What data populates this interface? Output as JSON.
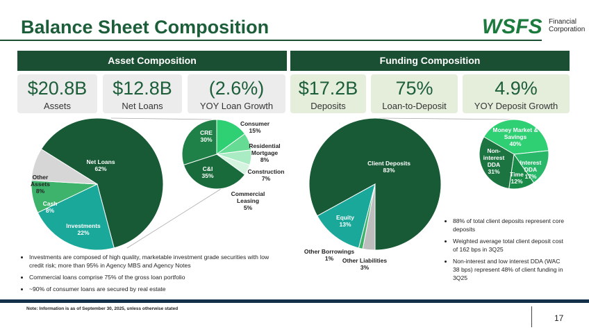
{
  "title": "Balance Sheet Composition",
  "logo": {
    "name": "WSFS",
    "line1": "Financial",
    "line2": "Corporation"
  },
  "asset_section": {
    "title": "Asset Composition",
    "kpis": [
      {
        "value": "$20.8B",
        "label": "Assets"
      },
      {
        "value": "$12.8B",
        "label": "Net Loans"
      },
      {
        "value": "(2.6%)",
        "label": "YOY Loan Growth"
      }
    ],
    "bullets": [
      "Investments are composed of high quality, marketable investment grade securities with low credit risk; more than 95% in Agency MBS and Agency Notes",
      "Commercial loans comprise 75% of the gross loan portfolio",
      "~90% of consumer loans are secured by real estate"
    ]
  },
  "funding_section": {
    "title": "Funding Composition",
    "kpis": [
      {
        "value": "$17.2B",
        "label": "Deposits"
      },
      {
        "value": "75%",
        "label": "Loan-to-Deposit"
      },
      {
        "value": "4.9%",
        "label": "YOY Deposit Growth"
      }
    ],
    "bullets": [
      "88% of total client deposits represent core deposits",
      "Weighted average total client deposit cost of 162 bps in 3Q25",
      "Non-interest and low interest DDA (WAC 38 bps) represent 48% of client funding in 3Q25"
    ]
  },
  "chart_data": [
    {
      "type": "pie",
      "categories": [
        "Net Loans",
        "Investments",
        "Cash",
        "Other Assets"
      ],
      "values": [
        62,
        22,
        8,
        8
      ],
      "value_labels": [
        "62%",
        "22%",
        "8%",
        "8%"
      ],
      "colors": [
        "#175a35",
        "#1aa89a",
        "#3db36b",
        "#d6d6d6"
      ]
    },
    {
      "type": "pie",
      "categories": [
        "Consumer",
        "Residential Mortgage",
        "Construction",
        "Commercial Leasing",
        "C&I",
        "CRE"
      ],
      "values": [
        15,
        8,
        7,
        5,
        35,
        30
      ],
      "value_labels": [
        "15%",
        "8%",
        "7%",
        "5%",
        "35%",
        "30%"
      ],
      "colors": [
        "#2fcf74",
        "#66db93",
        "#a9ebc2",
        "#d4f4e0",
        "#1a6b3c",
        "#1f8147"
      ]
    },
    {
      "type": "pie",
      "categories": [
        "Client Deposits",
        "Other Liabilities",
        "Other Borrowings",
        "Equity"
      ],
      "values": [
        83,
        3,
        1,
        13
      ],
      "value_labels": [
        "83%",
        "3%",
        "1%",
        "13%"
      ],
      "colors": [
        "#175a35",
        "#bdbdbd",
        "#3db36b",
        "#1aa89a"
      ]
    },
    {
      "type": "pie",
      "categories": [
        "Money Market & Savings",
        "Interest DDA",
        "Time",
        "Non-interest DDA"
      ],
      "values": [
        40,
        17,
        12,
        31
      ],
      "value_labels": [
        "40%",
        "17%",
        "12%",
        "31%"
      ],
      "colors": [
        "#2fcf74",
        "#29b86a",
        "#1a8a48",
        "#1c7440"
      ]
    }
  ],
  "footnote": "Note: Information is as of September 30, 2025, unless otherwise stated",
  "page_number": "17"
}
